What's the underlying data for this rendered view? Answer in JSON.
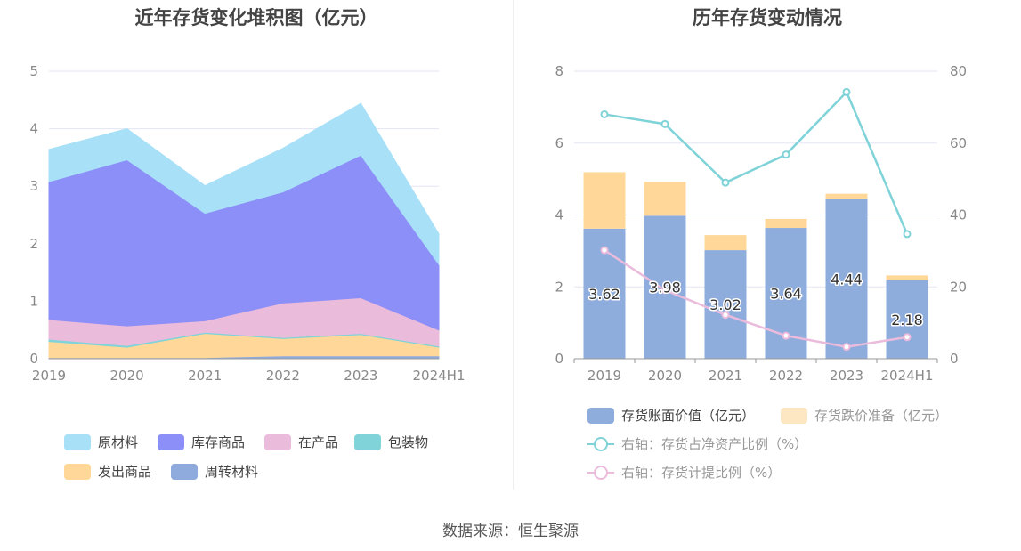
{
  "source_text": "数据来源：恒生聚源",
  "chart_data": [
    {
      "type": "area",
      "stacked": true,
      "title": "近年存货变化堆积图（亿元）",
      "categories": [
        "2019",
        "2020",
        "2021",
        "2022",
        "2023",
        "2024H1"
      ],
      "ylim": [
        0,
        5
      ],
      "yticks": [
        "0",
        "1",
        "2",
        "3",
        "4",
        "5"
      ],
      "grid": true,
      "legend_position": "bottom",
      "series": [
        {
          "name": "周转材料",
          "values": [
            0.02,
            0.02,
            0.02,
            0.05,
            0.05,
            0.05
          ],
          "color": "#8fabde"
        },
        {
          "name": "发出商品",
          "values": [
            0.28,
            0.18,
            0.42,
            0.3,
            0.37,
            0.15
          ],
          "color": "#ffd899"
        },
        {
          "name": "包装物",
          "values": [
            0.04,
            0.03,
            0.02,
            0.02,
            0.02,
            0.02
          ],
          "color": "#80d3d8"
        },
        {
          "name": "在产品",
          "values": [
            0.34,
            0.34,
            0.2,
            0.6,
            0.62,
            0.28
          ],
          "color": "#ebbbdc"
        },
        {
          "name": "库存商品",
          "values": [
            2.4,
            2.89,
            1.87,
            1.93,
            2.48,
            1.14
          ],
          "color": "#8c8ff7"
        },
        {
          "name": "原材料",
          "values": [
            0.56,
            0.54,
            0.48,
            0.76,
            0.9,
            0.53
          ],
          "color": "#a8e0f8"
        }
      ],
      "legend": [
        "原材料",
        "库存商品",
        "在产品",
        "包装物",
        "发出商品",
        "周转材料"
      ]
    },
    {
      "type": "bar",
      "stacked": true,
      "title": "历年存货变动情况",
      "categories": [
        "2019",
        "2020",
        "2021",
        "2022",
        "2023",
        "2024H1"
      ],
      "ylim_left": [
        0,
        8
      ],
      "yticks_left": [
        "0",
        "2",
        "4",
        "6",
        "8"
      ],
      "ylim_right": [
        0,
        80
      ],
      "yticks_right": [
        "0",
        "20",
        "40",
        "60",
        "80"
      ],
      "grid": true,
      "legend_position": "bottom",
      "series": [
        {
          "name": "存货账面价值（亿元）",
          "values": [
            3.62,
            3.98,
            3.02,
            3.64,
            4.44,
            2.18
          ],
          "labels": [
            "3.62",
            "3.98",
            "3.02",
            "3.64",
            "4.44",
            "2.18"
          ],
          "color": "#8eaddc"
        },
        {
          "name": "存货跌价准备（亿元）",
          "values": [
            1.57,
            0.94,
            0.42,
            0.25,
            0.15,
            0.14
          ],
          "color": "#ffd899"
        }
      ],
      "line_series": [
        {
          "name": "右轴：存货占净资产比例（%）",
          "axis": "right",
          "values": [
            68,
            65.3,
            49,
            56.8,
            74.2,
            34.7
          ],
          "color": "#7fd3d8"
        },
        {
          "name": "右轴：存货计提比例（%）",
          "axis": "right",
          "values": [
            30.2,
            19.1,
            12.2,
            6.4,
            3.3,
            6.0
          ],
          "color": "#ebbbdc"
        }
      ]
    }
  ]
}
